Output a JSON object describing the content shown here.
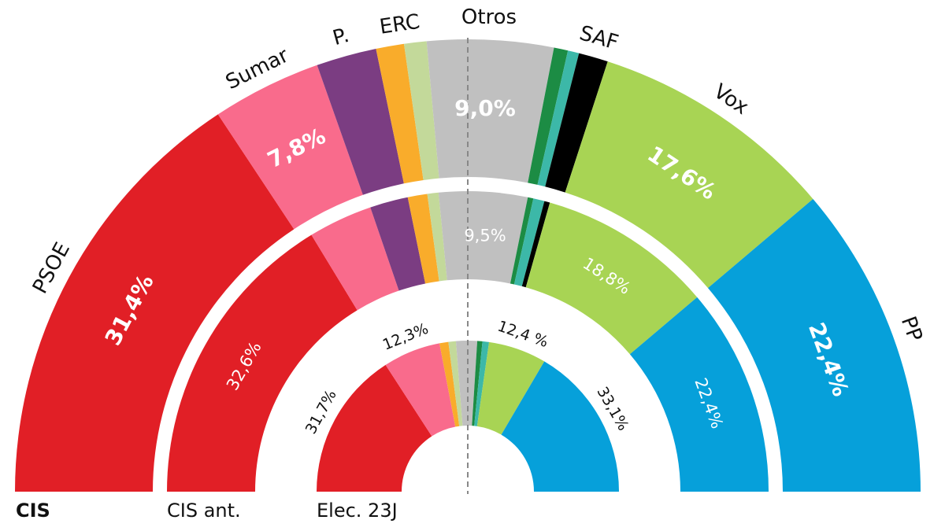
{
  "chart_data": {
    "type": "semicircle-donut",
    "colors": {
      "PSOE": "#e11f26",
      "Sumar": "#f96b8c",
      "Podemos": "#7b3d82",
      "ERC": "#f9ac2b",
      "LightGreen": "#c3d99a",
      "Otros": "#c0c0c0",
      "DarkGreen": "#1c8c44",
      "Teal": "#3cb8a8",
      "SAF": "#000000",
      "Vox": "#a8d454",
      "PP": "#06a0da"
    },
    "party_labels": [
      {
        "key": "PSOE",
        "text": "PSOE"
      },
      {
        "key": "Sumar",
        "text": "Sumar"
      },
      {
        "key": "Podemos",
        "text": "P."
      },
      {
        "key": "ERC",
        "text": "ERC"
      },
      {
        "key": "Otros",
        "text": "Otros"
      },
      {
        "key": "SAF",
        "text": "SAF"
      },
      {
        "key": "Vox",
        "text": "Vox"
      },
      {
        "key": "PP",
        "text": "PP"
      }
    ],
    "rings": [
      {
        "label": "CIS",
        "segments": [
          {
            "key": "PSOE",
            "value": 31.4,
            "label": "31,4%"
          },
          {
            "key": "Sumar",
            "value": 7.8,
            "label": "7,8%"
          },
          {
            "key": "Podemos",
            "value": 4.3
          },
          {
            "key": "ERC",
            "value": 2.0
          },
          {
            "key": "LightGreen",
            "value": 1.6
          },
          {
            "key": "Otros",
            "value": 9.0,
            "label": "9,0%"
          },
          {
            "key": "DarkGreen",
            "value": 1.0
          },
          {
            "key": "Teal",
            "value": 0.8
          },
          {
            "key": "SAF",
            "value": 2.1
          },
          {
            "key": "Vox",
            "value": 17.6,
            "label": "17,6%"
          },
          {
            "key": "PP",
            "value": 22.4,
            "label": "22,4%"
          }
        ]
      },
      {
        "label": "CIS ant.",
        "segments": [
          {
            "key": "PSOE",
            "value": 32.6,
            "label": "32,6%"
          },
          {
            "key": "Sumar",
            "value": 6.9
          },
          {
            "key": "Podemos",
            "value": 4.1
          },
          {
            "key": "ERC",
            "value": 2.1
          },
          {
            "key": "LightGreen",
            "value": 1.2
          },
          {
            "key": "Otros",
            "value": 9.5,
            "label": "9,5%"
          },
          {
            "key": "DarkGreen",
            "value": 0.6
          },
          {
            "key": "Teal",
            "value": 1.2
          },
          {
            "key": "SAF",
            "value": 0.6
          },
          {
            "key": "Vox",
            "value": 18.8,
            "label": "18,8%"
          },
          {
            "key": "PP",
            "value": 22.4,
            "label": "22,4%"
          }
        ]
      },
      {
        "label": "Elec. 23J",
        "segments": [
          {
            "key": "PSOE",
            "value": 31.7,
            "label": "31,7%"
          },
          {
            "key": "Sumar",
            "value": 12.3,
            "label": "12,3%"
          },
          {
            "key": "ERC",
            "value": 1.9
          },
          {
            "key": "LightGreen",
            "value": 1.6
          },
          {
            "key": "Otros",
            "value": 4.5
          },
          {
            "key": "DarkGreen",
            "value": 1.1
          },
          {
            "key": "Teal",
            "value": 1.4
          },
          {
            "key": "Vox",
            "value": 12.4,
            "label": "12,4 %"
          },
          {
            "key": "PP",
            "value": 33.1,
            "label": "33,1%"
          }
        ]
      }
    ]
  }
}
